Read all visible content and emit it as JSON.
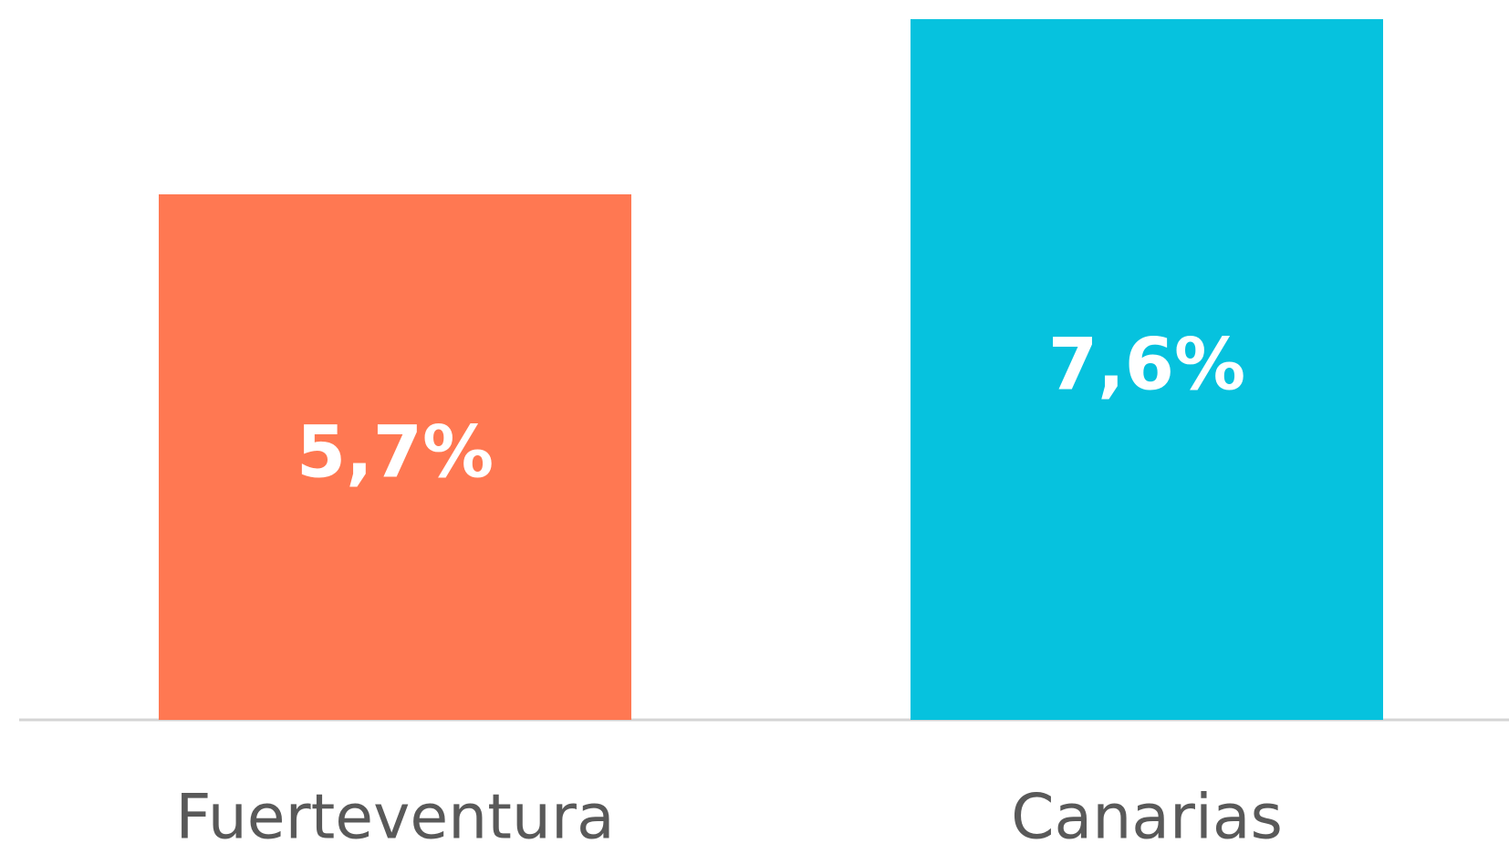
{
  "chart_data": {
    "type": "bar",
    "categories": [
      "Fuerteventura",
      "Canarias"
    ],
    "values": [
      5.7,
      7.6
    ],
    "value_labels": [
      "5,7%",
      "7,6%"
    ],
    "colors": [
      "#ff7852",
      "#06c2de"
    ]
  }
}
